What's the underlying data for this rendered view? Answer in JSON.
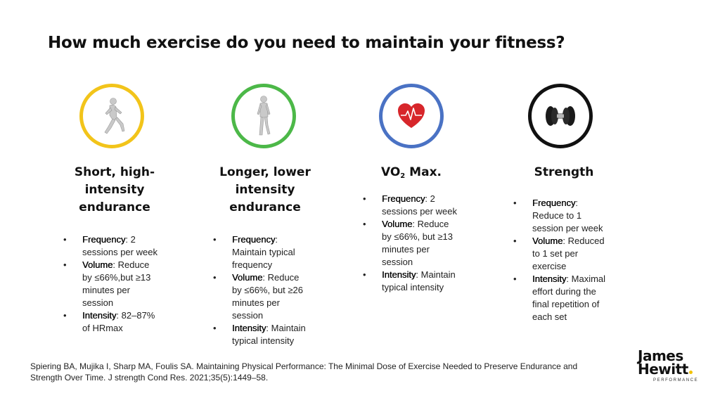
{
  "title": "How much exercise do you need to maintain your fitness?",
  "columns": [
    {
      "title_lines": [
        "Short, high-",
        "intensity",
        "endurance"
      ],
      "ring_color": "#f2c41a",
      "icon": "running-figure-icon",
      "bullets": [
        {
          "label": "Frequency",
          "lines": [
            ": 2",
            "sessions per week"
          ]
        },
        {
          "label": "Volume",
          "lines": [
            ": Reduce",
            "by ≤66%,but ≥13",
            "minutes per",
            "session"
          ]
        },
        {
          "label": "Intensity",
          "lines": [
            ": 82–87%",
            "of HRmax"
          ]
        }
      ]
    },
    {
      "title_lines": [
        "Longer, lower",
        "intensity",
        "endurance"
      ],
      "ring_color": "#4cb848",
      "icon": "walking-figure-icon",
      "bullets": [
        {
          "label": "Frequency",
          "lines": [
            ":",
            "Maintain typical",
            "frequency"
          ]
        },
        {
          "label": "Volume",
          "lines": [
            ": Reduce",
            "by ≤66%, but ≥26",
            "minutes per",
            "session"
          ]
        },
        {
          "label": "Intensity",
          "lines": [
            ": Maintain",
            "typical intensity"
          ]
        }
      ]
    },
    {
      "title_main": "VO",
      "title_sub": "2",
      "title_rest": " Max.",
      "ring_color": "#4a72c4",
      "icon": "heart-pulse-icon",
      "bullets": [
        {
          "label": "Frequency",
          "lines": [
            ": 2",
            "sessions per week"
          ]
        },
        {
          "label": "Volume",
          "lines": [
            ": Reduce",
            "by ≤66%, but ≥13",
            "minutes per",
            "session"
          ]
        },
        {
          "label": "Intensity",
          "lines": [
            ": Maintain",
            "typical intensity"
          ]
        }
      ]
    },
    {
      "title_lines": [
        "Strength"
      ],
      "ring_color": "#111111",
      "icon": "dumbbell-icon",
      "bullets": [
        {
          "label": "Frequency",
          "lines": [
            ":",
            "Reduce to 1",
            "session per week"
          ]
        },
        {
          "label": "Volume",
          "lines": [
            ": Reduced",
            "to 1 set per",
            "exercise"
          ]
        },
        {
          "label": "Intensity",
          "lines": [
            ": Maximal",
            "effort during the",
            "final repetition of",
            "each set"
          ]
        }
      ]
    }
  ],
  "citation_lines": [
    "Spiering BA, Mujika I, Sharp MA, Foulis SA. Maintaining Physical Performance: The Minimal Dose of Exercise Needed to Preserve Endurance and",
    "Strength Over Time. J strength Cond Res. 2021;35(5):1449–58."
  ],
  "logo": {
    "line1": "James",
    "line2": "Hewitt",
    "line3": "PERFORMANCE",
    "accent": "#f2c200"
  }
}
